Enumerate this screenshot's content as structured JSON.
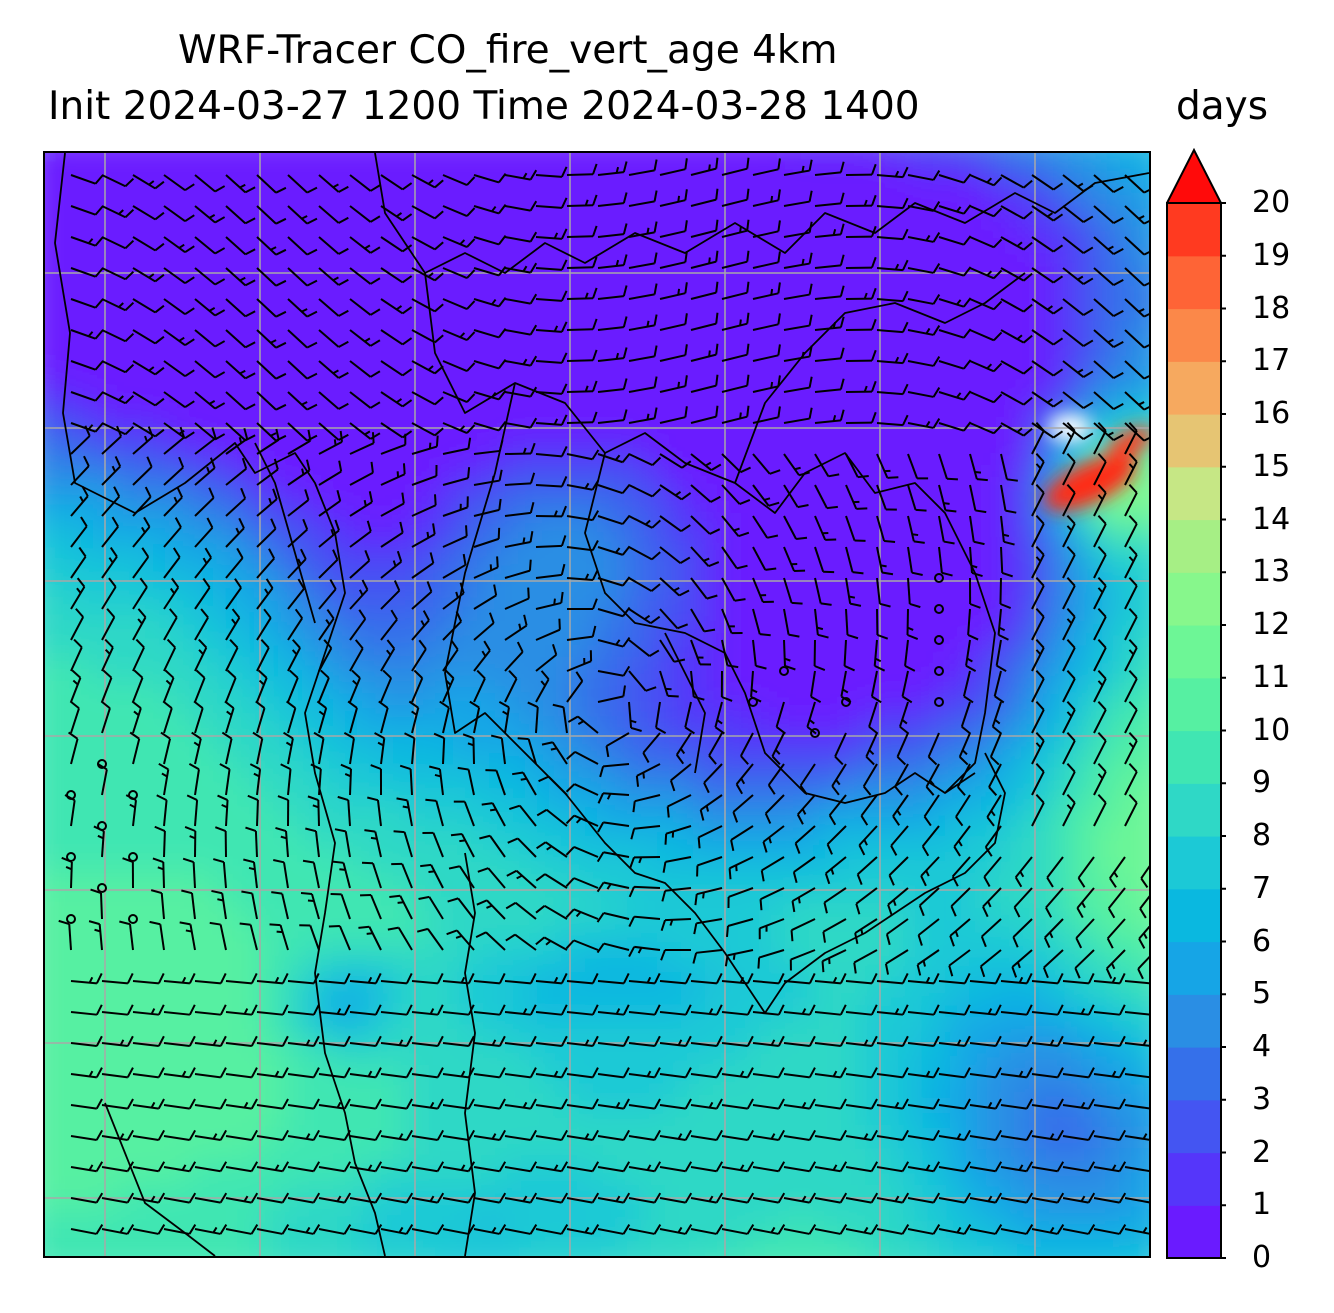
{
  "title": {
    "line1": "WRF-Tracer CO_fire_vert_age 4km",
    "line2": "Init 2024-03-27 1200 Time 2024-03-28 1400"
  },
  "colorbar": {
    "units": "days",
    "min": 0,
    "max": 20,
    "extend": "max",
    "ticks": [
      "0",
      "1",
      "2",
      "3",
      "4",
      "5",
      "6",
      "7",
      "8",
      "9",
      "10",
      "11",
      "12",
      "13",
      "14",
      "15",
      "16",
      "17",
      "18",
      "19",
      "20"
    ],
    "colors": [
      "#6a1bff",
      "#5536fa",
      "#4455f2",
      "#3570ea",
      "#2a8ee4",
      "#16a5e6",
      "#0ab8e0",
      "#1cc9d6",
      "#2fd8c6",
      "#40e6b2",
      "#56f0a2",
      "#6df696",
      "#87f78c",
      "#a6ef85",
      "#c6e785",
      "#e6c573",
      "#f6a95f",
      "#fb8849",
      "#fe6436",
      "#ff3a20",
      "#fd0d0d"
    ],
    "over_color": "#ff0a0a"
  },
  "map": {
    "field": "CO_fire_vert_age",
    "gridlines": true,
    "overlays": [
      "coastlines",
      "country borders",
      "wind barbs"
    ]
  }
}
